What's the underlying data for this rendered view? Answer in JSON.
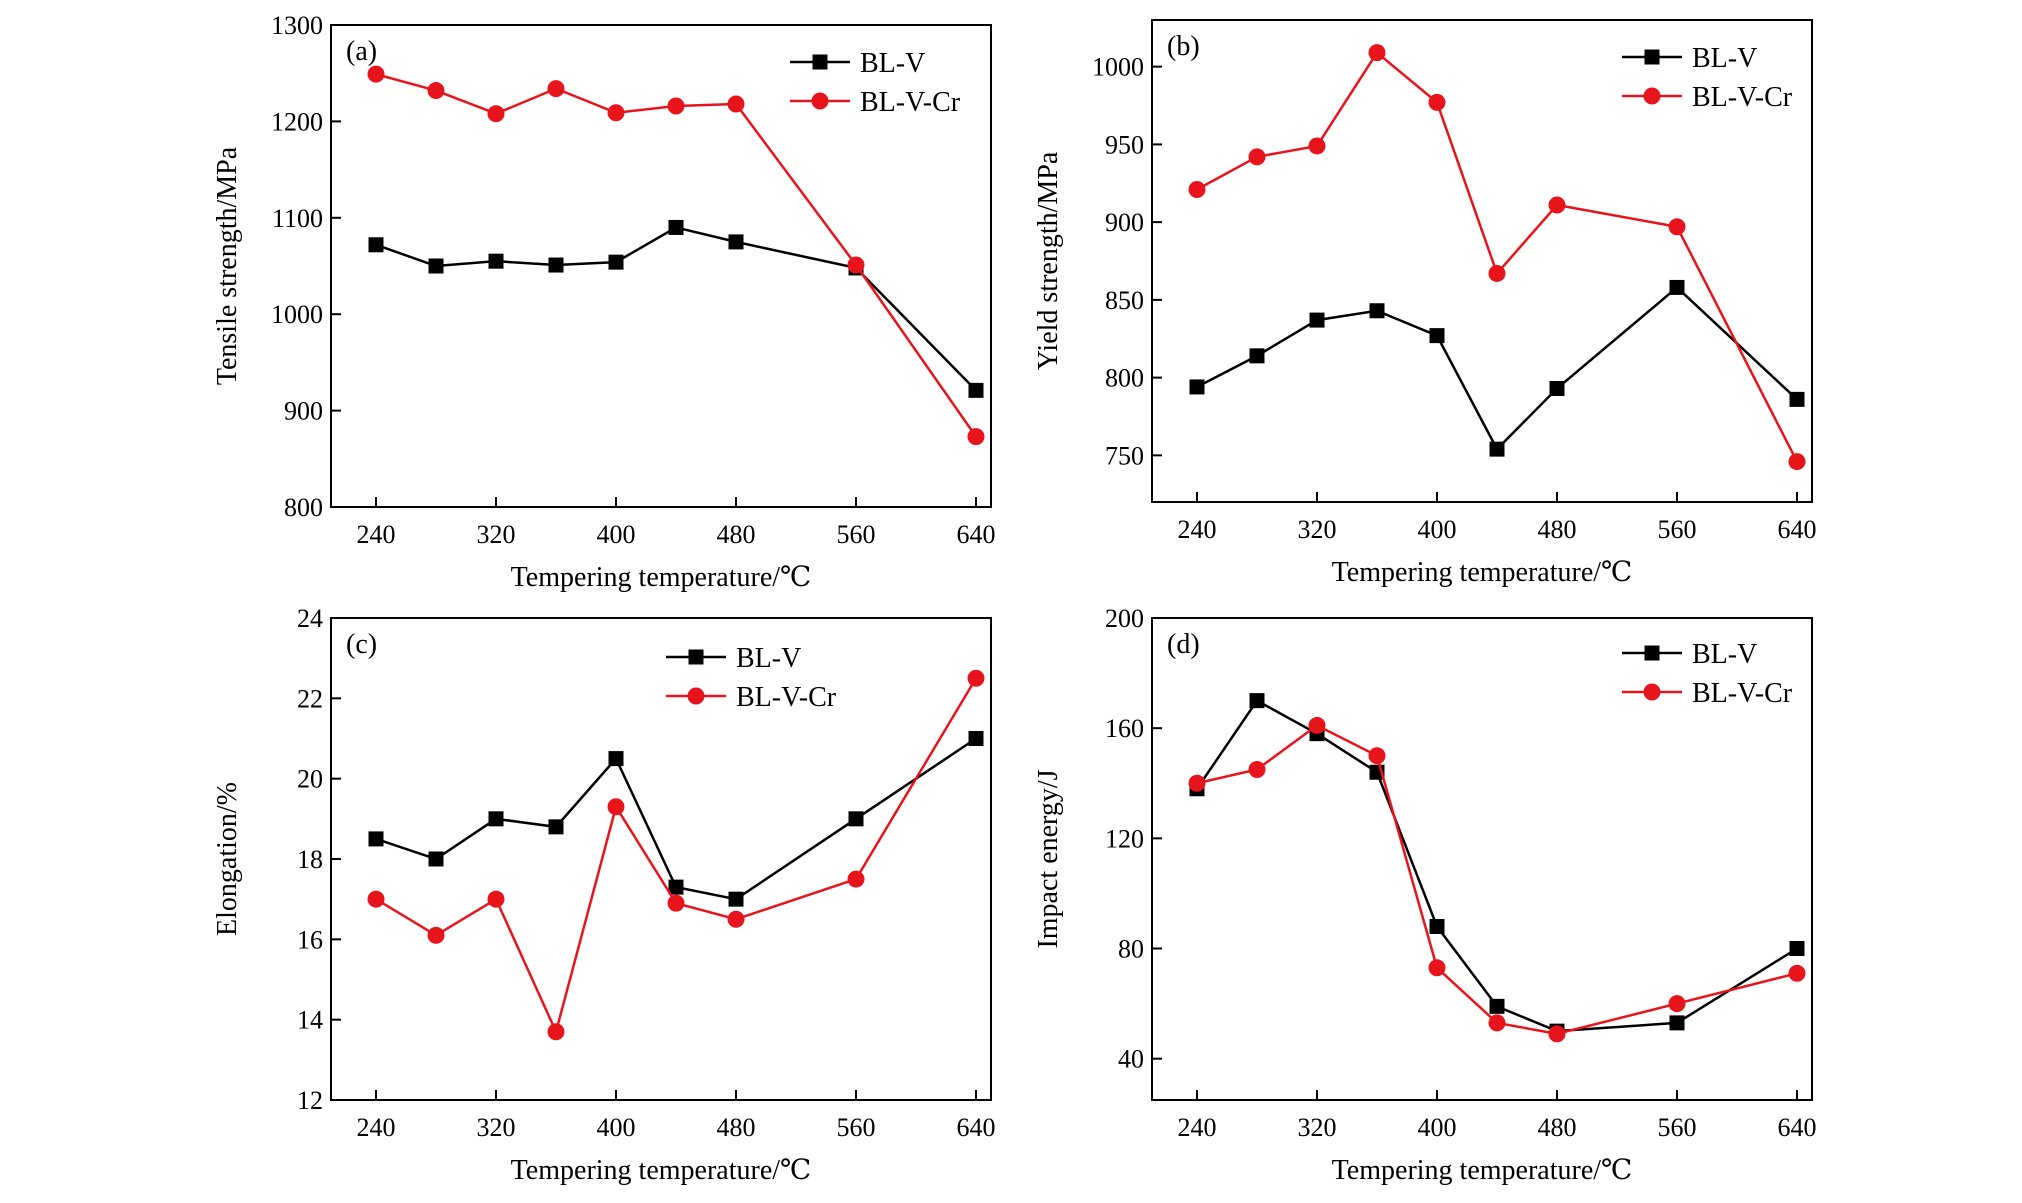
{
  "colors": {
    "BL-V": "#000000",
    "BL-V-Cr": "#e8141b"
  },
  "chart_data": [
    {
      "type": "line",
      "panel_label": "(a)",
      "xlabel": "Tempering temperature/℃",
      "ylabel": "Tensile strength/MPa",
      "xlim": [
        210,
        650
      ],
      "ylim": [
        800,
        1300
      ],
      "x_ticks": [
        240,
        320,
        400,
        480,
        560,
        640
      ],
      "y_ticks": [
        800,
        900,
        1000,
        1100,
        1200,
        1300
      ],
      "legend_position": "top-right",
      "series": [
        {
          "name": "BL-V",
          "marker": "square",
          "x": [
            240,
            280,
            320,
            360,
            400,
            440,
            480,
            560,
            640
          ],
          "y": [
            1072,
            1050,
            1055,
            1051,
            1054,
            1090,
            1075,
            1048,
            921
          ]
        },
        {
          "name": "BL-V-Cr",
          "marker": "circle",
          "x": [
            240,
            280,
            320,
            360,
            400,
            440,
            480,
            560,
            640
          ],
          "y": [
            1249,
            1232,
            1208,
            1234,
            1209,
            1216,
            1218,
            1051,
            873
          ]
        }
      ]
    },
    {
      "type": "line",
      "panel_label": "(b)",
      "xlabel": "Tempering temperature/℃",
      "ylabel": "Yield strength/MPa",
      "xlim": [
        210,
        650
      ],
      "ylim": [
        720,
        1030
      ],
      "x_ticks": [
        240,
        320,
        400,
        480,
        560,
        640
      ],
      "y_ticks": [
        750,
        800,
        850,
        900,
        950,
        1000
      ],
      "legend_position": "top-right",
      "series": [
        {
          "name": "BL-V",
          "marker": "square",
          "x": [
            240,
            280,
            320,
            360,
            400,
            440,
            480,
            560,
            640
          ],
          "y": [
            794,
            814,
            837,
            843,
            827,
            754,
            793,
            858,
            786
          ]
        },
        {
          "name": "BL-V-Cr",
          "marker": "circle",
          "x": [
            240,
            280,
            320,
            360,
            400,
            440,
            480,
            560,
            640
          ],
          "y": [
            921,
            942,
            949,
            1009,
            977,
            867,
            911,
            897,
            746
          ]
        }
      ]
    },
    {
      "type": "line",
      "panel_label": "(c)",
      "xlabel": "Tempering temperature/℃",
      "ylabel": "Elongation/%",
      "xlim": [
        210,
        650
      ],
      "ylim": [
        12,
        24
      ],
      "x_ticks": [
        240,
        320,
        400,
        480,
        560,
        640
      ],
      "y_ticks": [
        12,
        14,
        16,
        18,
        20,
        22,
        24
      ],
      "legend_position": "top-right",
      "series": [
        {
          "name": "BL-V",
          "marker": "square",
          "x": [
            240,
            280,
            320,
            360,
            400,
            440,
            480,
            560,
            640
          ],
          "y": [
            18.5,
            18.0,
            19.0,
            18.8,
            20.5,
            17.3,
            17.0,
            19.0,
            21.0
          ]
        },
        {
          "name": "BL-V-Cr",
          "marker": "circle",
          "x": [
            240,
            280,
            320,
            360,
            400,
            440,
            480,
            560,
            640
          ],
          "y": [
            17.0,
            16.1,
            17.0,
            13.7,
            19.3,
            16.9,
            16.5,
            17.5,
            22.5
          ]
        }
      ]
    },
    {
      "type": "line",
      "panel_label": "(d)",
      "xlabel": "Tempering temperature/℃",
      "ylabel": "Impact energy/J",
      "xlim": [
        210,
        650
      ],
      "ylim": [
        25,
        200
      ],
      "x_ticks": [
        240,
        320,
        400,
        480,
        560,
        640
      ],
      "y_ticks": [
        40,
        80,
        120,
        160,
        200
      ],
      "legend_position": "top-right",
      "series": [
        {
          "name": "BL-V",
          "marker": "square",
          "x": [
            240,
            280,
            320,
            360,
            400,
            440,
            480,
            560,
            640
          ],
          "y": [
            138,
            170,
            158,
            144,
            88,
            59,
            50,
            53,
            80
          ]
        },
        {
          "name": "BL-V-Cr",
          "marker": "circle",
          "x": [
            240,
            280,
            320,
            360,
            400,
            440,
            480,
            560,
            640
          ],
          "y": [
            140,
            145,
            161,
            150,
            73,
            53,
            49,
            60,
            71
          ]
        }
      ]
    }
  ]
}
